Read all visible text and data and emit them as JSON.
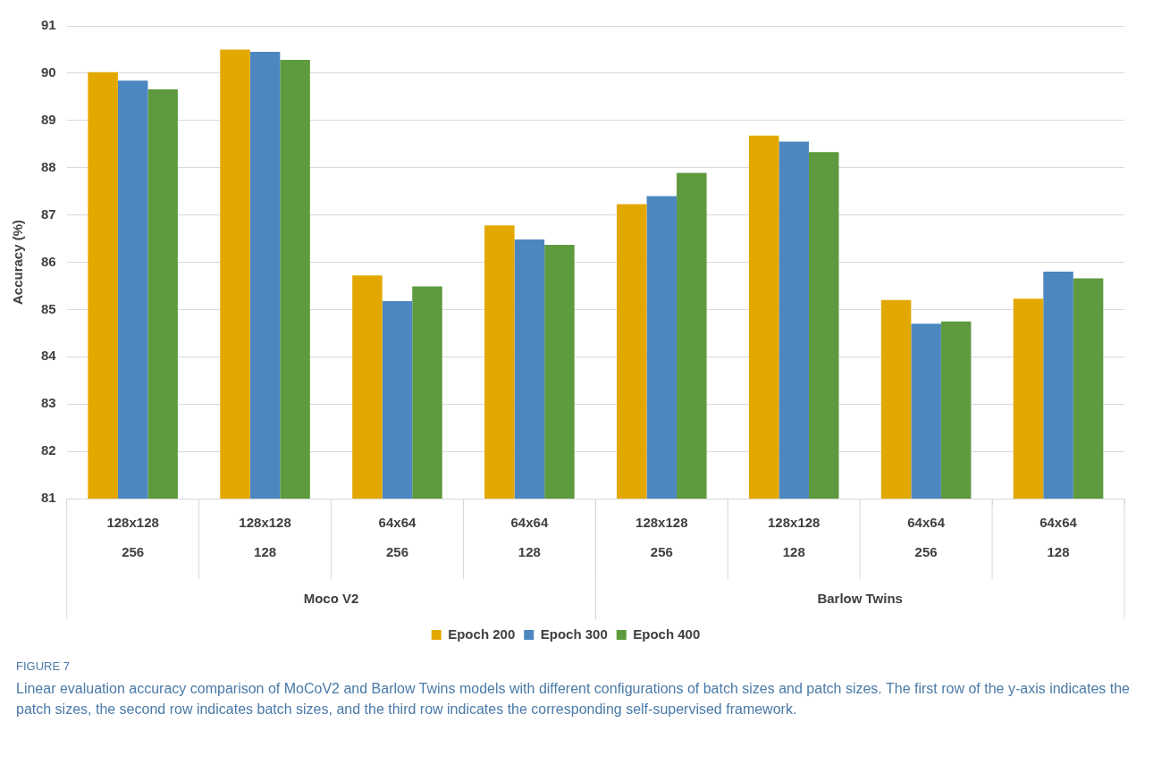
{
  "chart_data": {
    "type": "bar",
    "title": "FIGURE 7",
    "ylabel": "Accuracy (%)",
    "categories": [
      "128x128\n256",
      "128x128\n128",
      "64x64\n256",
      "64x64\n128",
      "128x128\n256",
      "128x128\n128",
      "64x64\n256",
      "64x64\n128"
    ],
    "series": [
      {
        "name": "Epoch 200",
        "color": "#e3a800",
        "values": [
          90.02,
          90.5,
          85.72,
          86.78,
          87.23,
          88.68,
          85.2,
          85.23
        ]
      },
      {
        "name": "Epoch 300",
        "color": "#4d87c0",
        "values": [
          89.84,
          90.45,
          85.18,
          86.48,
          87.4,
          88.55,
          84.7,
          85.8
        ]
      },
      {
        "name": "Epoch 400",
        "color": "#5e9a3e",
        "values": [
          89.66,
          90.28,
          85.49,
          86.37,
          87.89,
          88.33,
          84.75,
          85.66
        ]
      }
    ],
    "ylim": [
      81,
      91
    ],
    "yticks": [
      81,
      82,
      83,
      84,
      85,
      86,
      87,
      88,
      89,
      90,
      91
    ],
    "grid": "y",
    "legend": "bottom",
    "annotations": [
      "Moco V2",
      "Barlow Twins",
      "Linear evaluation accuracy comparison of MoCoV2 and Barlow Twins models with different configurations of batch sizes and patch sizes. The first row of the y-axis indicates the patch sizes, the second row indicates batch sizes, and the third row indicates the corresponding self-supervised framework."
    ]
  }
}
